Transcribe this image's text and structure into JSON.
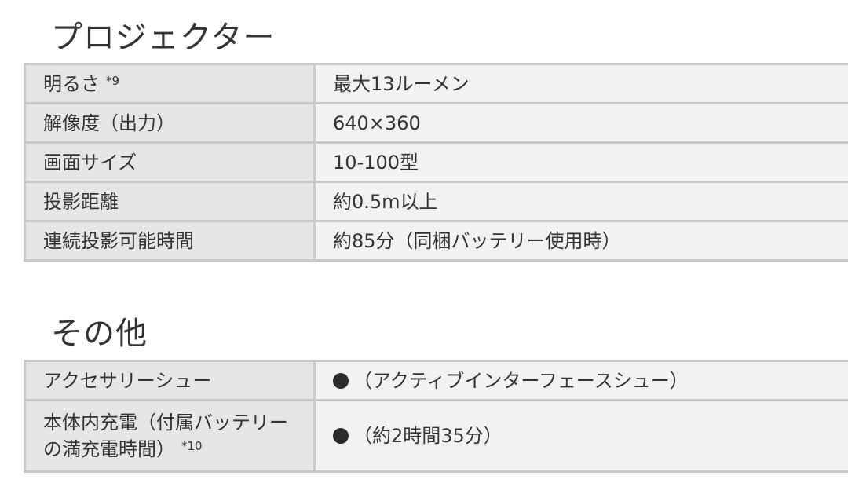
{
  "sections": [
    {
      "title": "プロジェクター",
      "rows": [
        {
          "label": "明るさ",
          "note": "*9",
          "value": "最大13ルーメン"
        },
        {
          "label": "解像度（出力）",
          "value": "640×360"
        },
        {
          "label": "画面サイズ",
          "value": "10-100型"
        },
        {
          "label": "投影距離",
          "value": "約0.5m以上"
        },
        {
          "label": "連続投影可能時間",
          "value": "約85分（同梱バッテリー使用時）"
        }
      ]
    },
    {
      "title": "その他",
      "rows": [
        {
          "label": "アクセサリーシュー",
          "icon": "filled-circle-icon",
          "value": "（アクティブインターフェースシュー）"
        },
        {
          "label": "本体内充電（付属バッテリーの満充電時間）",
          "note": "*10",
          "icon": "filled-circle-icon",
          "value": "（約2時間35分）"
        }
      ]
    }
  ]
}
